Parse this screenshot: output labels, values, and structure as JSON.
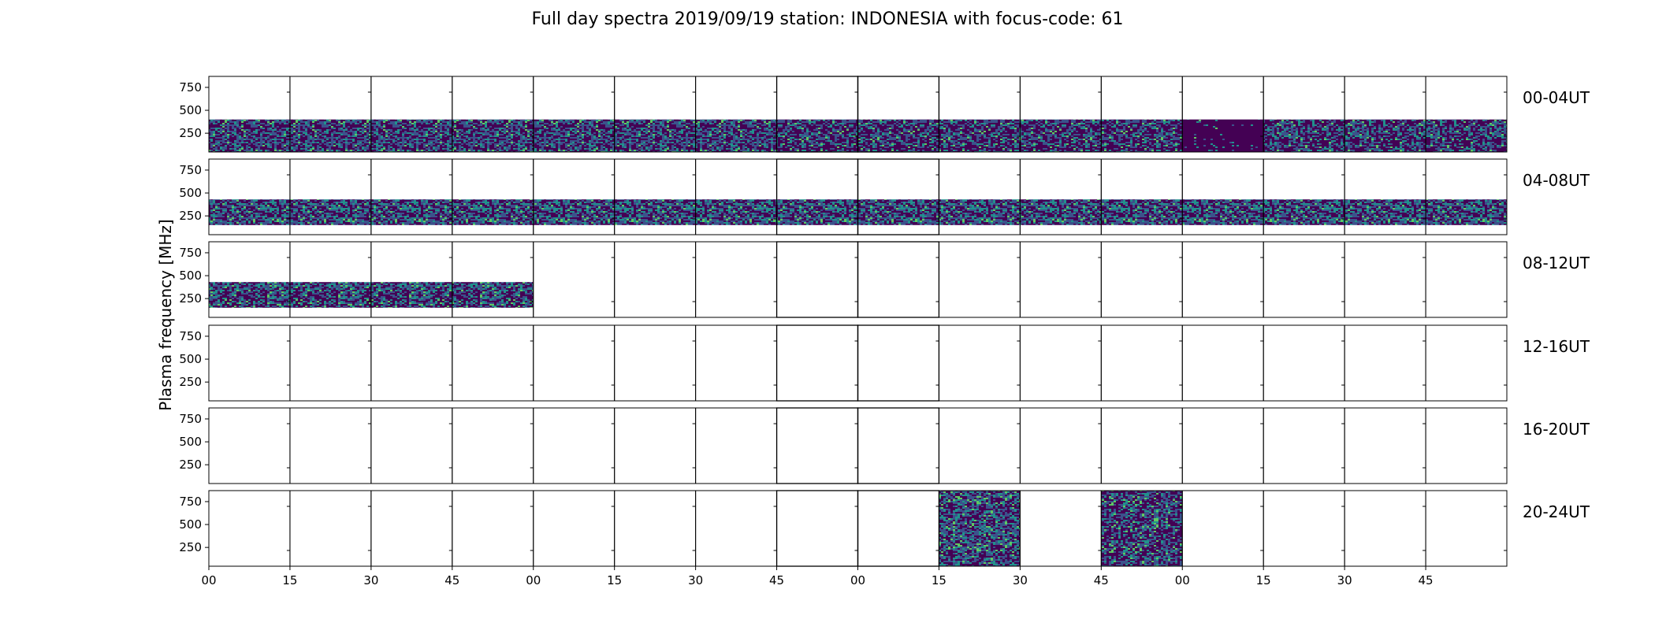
{
  "figure": {
    "title": "Full day spectra 2019/09/19 station: INDONESIA with focus-code: 61",
    "ylabel": "Plasma frequency [MHz]"
  },
  "chart_data": {
    "type": "heatmap",
    "title": "Full day spectra 2019/09/19 station: INDONESIA with focus-code: 61",
    "ylabel": "Plasma frequency [MHz]",
    "ylim": [
      45,
      870
    ],
    "yticks": [
      250,
      500,
      750
    ],
    "xticks": [
      "00",
      "15",
      "30",
      "45",
      "00",
      "15",
      "30",
      "45",
      "00",
      "15",
      "30",
      "45",
      "00",
      "15",
      "30",
      "45"
    ],
    "panels_per_row": 16,
    "colormap": [
      "#440154",
      "#3b528b",
      "#21918c",
      "#5ec962"
    ],
    "rows": [
      {
        "label": "00-04UT",
        "segments": [
          {
            "panel_start": 0,
            "panel_end": 7,
            "f_low": 45,
            "f_high": 400,
            "tone": 0.45
          },
          {
            "panel_start": 7,
            "panel_end": 12,
            "f_low": 45,
            "f_high": 400,
            "tone": 0.38
          },
          {
            "panel_start": 12,
            "panel_end": 13,
            "f_low": 45,
            "f_high": 400,
            "tone": 0.05
          },
          {
            "panel_start": 13,
            "panel_end": 16,
            "f_low": 45,
            "f_high": 400,
            "tone": 0.38
          }
        ]
      },
      {
        "label": "04-08UT",
        "segments": [
          {
            "panel_start": 0,
            "panel_end": 16,
            "f_low": 150,
            "f_high": 430,
            "tone": 0.5
          }
        ]
      },
      {
        "label": "08-12UT",
        "segments": [
          {
            "panel_start": 0,
            "panel_end": 4,
            "f_low": 150,
            "f_high": 430,
            "tone": 0.42
          }
        ]
      },
      {
        "label": "12-16UT",
        "segments": []
      },
      {
        "label": "16-20UT",
        "segments": []
      },
      {
        "label": "20-24UT",
        "segments": [
          {
            "panel_start": 9,
            "panel_end": 10,
            "f_low": 45,
            "f_high": 870,
            "tone": 0.45
          },
          {
            "panel_start": 11,
            "panel_end": 12,
            "f_low": 45,
            "f_high": 870,
            "tone": 0.4
          }
        ]
      }
    ]
  }
}
